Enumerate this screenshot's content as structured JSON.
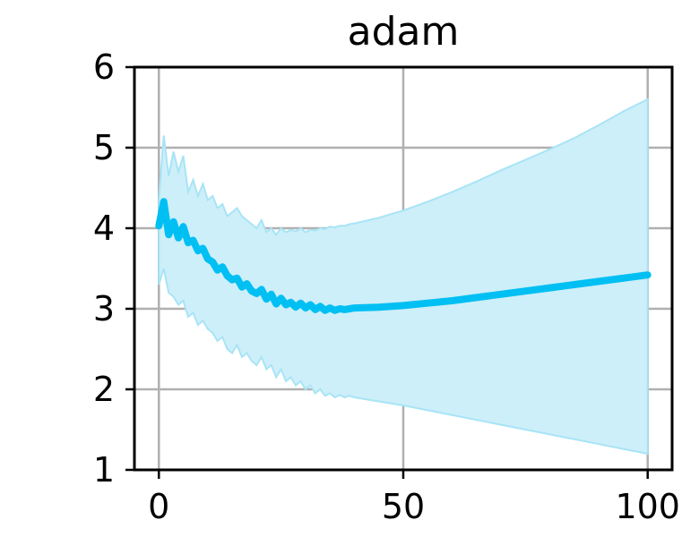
{
  "chart_data": {
    "type": "line",
    "title": "adam",
    "xlabel": "",
    "ylabel": "",
    "xlim": [
      -5,
      105
    ],
    "ylim": [
      1,
      6
    ],
    "x_ticks": [
      0,
      50,
      100
    ],
    "y_ticks": [
      1,
      2,
      3,
      4,
      5,
      6
    ],
    "x_tick_labels": [
      "0",
      "50",
      "100"
    ],
    "y_tick_labels": [
      "1",
      "2",
      "3",
      "4",
      "5",
      "6"
    ],
    "grid": true,
    "colors": {
      "line": "#00bff3",
      "band": "#cdeff9",
      "band_edge": "#a8e4f6",
      "grid": "#b0b0b0",
      "axes": "#000000"
    },
    "series": [
      {
        "x": [
          0,
          1,
          2,
          3,
          4,
          5,
          6,
          7,
          8,
          9,
          10,
          11,
          12,
          13,
          14,
          15,
          16,
          17,
          18,
          19,
          20,
          21,
          22,
          23,
          24,
          25,
          26,
          27,
          28,
          29,
          30,
          31,
          32,
          33,
          34,
          35,
          36,
          37,
          38,
          39,
          40,
          45,
          50,
          55,
          60,
          65,
          70,
          75,
          80,
          85,
          90,
          95,
          100
        ],
        "mean": [
          4.03,
          4.33,
          3.92,
          4.08,
          3.88,
          4.02,
          3.82,
          3.85,
          3.72,
          3.75,
          3.62,
          3.58,
          3.48,
          3.52,
          3.41,
          3.36,
          3.38,
          3.27,
          3.31,
          3.22,
          3.19,
          3.24,
          3.12,
          3.18,
          3.06,
          3.13,
          3.05,
          3.08,
          3.02,
          3.07,
          3.01,
          3.05,
          2.99,
          3.03,
          2.98,
          3.01,
          2.98,
          3.0,
          2.99,
          3.0,
          3.01,
          3.02,
          3.04,
          3.07,
          3.1,
          3.14,
          3.18,
          3.22,
          3.26,
          3.3,
          3.34,
          3.38,
          3.42
        ],
        "upper": [
          4.35,
          5.15,
          4.65,
          4.95,
          4.7,
          4.9,
          4.45,
          4.6,
          4.4,
          4.55,
          4.35,
          4.4,
          4.25,
          4.3,
          4.15,
          4.2,
          4.25,
          4.15,
          4.1,
          4.05,
          4.0,
          4.1,
          3.95,
          4.0,
          3.92,
          4.0,
          3.95,
          3.98,
          3.96,
          4.0,
          3.95,
          3.98,
          3.97,
          4.0,
          3.99,
          4.02,
          4.01,
          4.03,
          4.03,
          4.05,
          4.06,
          4.13,
          4.22,
          4.33,
          4.45,
          4.58,
          4.72,
          4.85,
          4.98,
          5.12,
          5.28,
          5.45,
          5.6
        ],
        "lower": [
          3.3,
          3.5,
          3.2,
          3.15,
          3.05,
          3.1,
          2.9,
          2.95,
          2.8,
          2.85,
          2.75,
          2.7,
          2.6,
          2.65,
          2.5,
          2.45,
          2.55,
          2.4,
          2.45,
          2.35,
          2.3,
          2.4,
          2.25,
          2.3,
          2.15,
          2.25,
          2.1,
          2.15,
          2.05,
          2.1,
          2.0,
          2.05,
          1.95,
          2.0,
          1.92,
          1.95,
          1.9,
          1.93,
          1.9,
          1.92,
          1.9,
          1.85,
          1.8,
          1.74,
          1.68,
          1.62,
          1.56,
          1.5,
          1.44,
          1.38,
          1.32,
          1.26,
          1.2
        ]
      }
    ]
  }
}
